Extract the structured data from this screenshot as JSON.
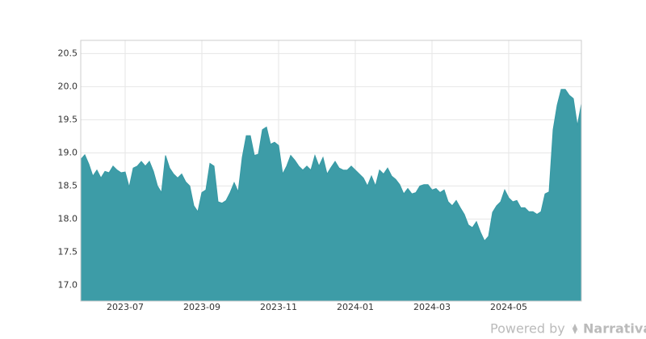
{
  "chart_data": {
    "type": "area",
    "categories": [
      null,
      null,
      null,
      null,
      null,
      null,
      null,
      null,
      null,
      null,
      null,
      "2023-07",
      null,
      null,
      null,
      null,
      null,
      null,
      null,
      null,
      null,
      null,
      null,
      null,
      null,
      null,
      null,
      null,
      null,
      null,
      "2023-09",
      null,
      null,
      null,
      null,
      null,
      null,
      null,
      null,
      null,
      null,
      null,
      null,
      null,
      null,
      null,
      null,
      null,
      null,
      "2023-11",
      null,
      null,
      null,
      null,
      null,
      null,
      null,
      null,
      null,
      null,
      null,
      null,
      null,
      null,
      null,
      null,
      null,
      null,
      "2024-01",
      null,
      null,
      null,
      null,
      null,
      null,
      null,
      null,
      null,
      null,
      null,
      null,
      null,
      null,
      null,
      null,
      null,
      null,
      "2024-03",
      null,
      null,
      null,
      null,
      null,
      null,
      null,
      null,
      null,
      null,
      null,
      null,
      null,
      null,
      null,
      null,
      null,
      null,
      "2024-05",
      null,
      null,
      null,
      null,
      null,
      null,
      null,
      null,
      null,
      null,
      null,
      null,
      null,
      null,
      null,
      null,
      null,
      null
    ],
    "values": [
      18.9,
      18.97,
      18.83,
      18.65,
      18.74,
      18.62,
      18.72,
      18.7,
      18.8,
      18.74,
      18.7,
      18.71,
      18.48,
      18.77,
      18.8,
      18.87,
      18.8,
      18.87,
      18.72,
      18.5,
      18.4,
      18.96,
      18.77,
      18.68,
      18.62,
      18.68,
      18.56,
      18.5,
      18.2,
      18.11,
      18.4,
      18.44,
      18.84,
      18.8,
      18.26,
      18.24,
      18.28,
      18.4,
      18.55,
      18.41,
      18.93,
      19.26,
      19.26,
      18.96,
      18.98,
      19.35,
      19.39,
      19.13,
      19.16,
      19.11,
      18.68,
      18.8,
      18.96,
      18.89,
      18.8,
      18.74,
      18.8,
      18.74,
      18.96,
      18.8,
      18.93,
      18.68,
      18.78,
      18.87,
      18.77,
      18.74,
      18.74,
      18.8,
      18.74,
      18.68,
      18.62,
      18.5,
      18.65,
      18.5,
      18.74,
      18.68,
      18.77,
      18.65,
      18.6,
      18.52,
      18.38,
      18.46,
      18.38,
      18.4,
      18.5,
      18.52,
      18.52,
      18.44,
      18.46,
      18.4,
      18.44,
      18.26,
      18.2,
      18.28,
      18.17,
      18.07,
      17.91,
      17.87,
      17.96,
      17.8,
      17.67,
      17.74,
      18.1,
      18.2,
      18.26,
      18.44,
      18.32,
      18.26,
      18.28,
      18.17,
      18.17,
      18.11,
      18.11,
      18.07,
      18.11,
      18.38,
      18.41,
      19.35,
      19.72,
      19.96,
      19.96,
      19.87,
      19.82,
      19.41,
      19.74
    ],
    "color": "#3799a4",
    "ylim": [
      16.76,
      20.7
    ],
    "yticks": [
      {
        "value": 17,
        "label": "17.0"
      },
      17.5,
      {
        "value": 18,
        "label": "18.0"
      },
      18.5,
      {
        "value": 19,
        "label": "19.0"
      },
      19.5,
      {
        "value": 20,
        "label": "20.0"
      },
      20.5
    ],
    "grid": true
  },
  "footer": {
    "text": "Powered by",
    "brand": "Narrativa"
  }
}
